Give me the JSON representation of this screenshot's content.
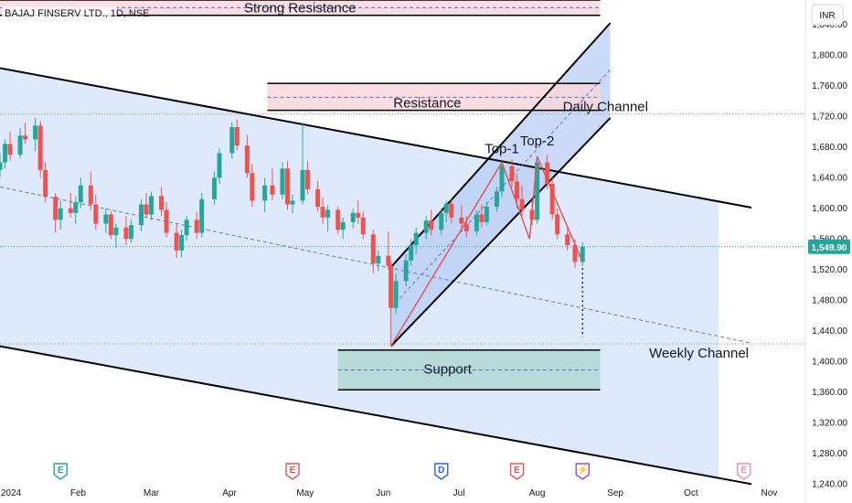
{
  "colors": {
    "up": "#26a69a",
    "down": "#ef5350",
    "channel_fill": "#d6e4fb",
    "daily_fill": "#b9cdf5",
    "resistance_fill": "#f8d7da",
    "support_fill": "#b2d8d4",
    "pattern_line": "#e05050",
    "price_tag": "#26a69a"
  },
  "chart_data": {
    "type": "candlestick",
    "title": "BAJAJ FINSERV LTD., 1D, NSE",
    "currency_label": "INR",
    "last_price": 1549.9,
    "last_price_label": "1,549.90",
    "ylim": [
      1232,
      1872
    ],
    "xlim": [
      "2024-01-01",
      "2024-11-15"
    ],
    "y_ticks": [
      1840,
      1800,
      1760,
      1720,
      1680,
      1640,
      1600,
      1560,
      1520,
      1480,
      1440,
      1400,
      1360,
      1320,
      1280,
      1240
    ],
    "y_tick_labels": [
      "1,840.00",
      "1,800.00",
      "1,760.00",
      "1,720.00",
      "1,680.00",
      "1,640.00",
      "1,600.00",
      "1,560.00",
      "1,520.00",
      "1,480.00",
      "1,440.00",
      "1,400.00",
      "1,360.00",
      "1,320.00",
      "1,280.00",
      "1,240.00"
    ],
    "x_ticks": [
      {
        "date": "2024-01-01",
        "label": "2024"
      },
      {
        "date": "2024-02-01",
        "label": "Feb"
      },
      {
        "date": "2024-03-01",
        "label": "Mar"
      },
      {
        "date": "2024-04-01",
        "label": "Apr"
      },
      {
        "date": "2024-05-01",
        "label": "May"
      },
      {
        "date": "2024-06-01",
        "label": "Jun"
      },
      {
        "date": "2024-07-01",
        "label": "Jul"
      },
      {
        "date": "2024-08-01",
        "label": "Aug"
      },
      {
        "date": "2024-09-01",
        "label": "Sep"
      },
      {
        "date": "2024-10-01",
        "label": "Oct"
      },
      {
        "date": "2024-11-01",
        "label": "Nov"
      }
    ],
    "candles": [
      [
        "2024-01-01",
        1650,
        1672,
        1640,
        1660
      ],
      [
        "2024-01-03",
        1660,
        1690,
        1652,
        1684
      ],
      [
        "2024-01-05",
        1684,
        1700,
        1662,
        1670
      ],
      [
        "2024-01-09",
        1670,
        1705,
        1665,
        1695
      ],
      [
        "2024-01-11",
        1695,
        1712,
        1684,
        1690
      ],
      [
        "2024-01-15",
        1690,
        1718,
        1675,
        1708
      ],
      [
        "2024-01-17",
        1708,
        1714,
        1640,
        1650
      ],
      [
        "2024-01-19",
        1650,
        1660,
        1608,
        1615
      ],
      [
        "2024-01-23",
        1615,
        1620,
        1568,
        1585
      ],
      [
        "2024-01-25",
        1585,
        1610,
        1572,
        1600
      ],
      [
        "2024-01-29",
        1600,
        1620,
        1588,
        1594
      ],
      [
        "2024-01-31",
        1594,
        1615,
        1580,
        1608
      ],
      [
        "2024-02-02",
        1608,
        1640,
        1600,
        1630
      ],
      [
        "2024-02-06",
        1630,
        1648,
        1598,
        1605
      ],
      [
        "2024-02-08",
        1605,
        1618,
        1572,
        1580
      ],
      [
        "2024-02-12",
        1580,
        1600,
        1568,
        1592
      ],
      [
        "2024-02-14",
        1592,
        1596,
        1560,
        1565
      ],
      [
        "2024-02-16",
        1565,
        1580,
        1548,
        1575
      ],
      [
        "2024-02-20",
        1575,
        1590,
        1552,
        1560
      ],
      [
        "2024-02-22",
        1560,
        1585,
        1555,
        1578
      ],
      [
        "2024-02-26",
        1578,
        1612,
        1570,
        1605
      ],
      [
        "2024-02-28",
        1605,
        1620,
        1588,
        1592
      ],
      [
        "2024-03-01",
        1592,
        1622,
        1585,
        1616
      ],
      [
        "2024-03-05",
        1616,
        1628,
        1590,
        1598
      ],
      [
        "2024-03-07",
        1598,
        1608,
        1562,
        1568
      ],
      [
        "2024-03-11",
        1568,
        1580,
        1535,
        1545
      ],
      [
        "2024-03-13",
        1545,
        1572,
        1536,
        1565
      ],
      [
        "2024-03-15",
        1565,
        1590,
        1558,
        1585
      ],
      [
        "2024-03-19",
        1585,
        1595,
        1560,
        1568
      ],
      [
        "2024-03-21",
        1568,
        1620,
        1562,
        1612
      ],
      [
        "2024-03-26",
        1612,
        1648,
        1605,
        1640
      ],
      [
        "2024-03-28",
        1640,
        1678,
        1632,
        1672
      ],
      [
        "2024-04-02",
        1672,
        1712,
        1665,
        1706
      ],
      [
        "2024-04-04",
        1706,
        1716,
        1676,
        1682
      ],
      [
        "2024-04-08",
        1682,
        1696,
        1640,
        1646
      ],
      [
        "2024-04-10",
        1646,
        1658,
        1602,
        1610
      ],
      [
        "2024-04-15",
        1610,
        1640,
        1595,
        1630
      ],
      [
        "2024-04-18",
        1630,
        1652,
        1610,
        1618
      ],
      [
        "2024-04-22",
        1618,
        1660,
        1612,
        1652
      ],
      [
        "2024-04-24",
        1652,
        1662,
        1598,
        1605
      ],
      [
        "2024-04-26",
        1605,
        1618,
        1594,
        1610
      ],
      [
        "2024-04-30",
        1610,
        1712,
        1605,
        1650
      ],
      [
        "2024-05-02",
        1650,
        1662,
        1618,
        1625
      ],
      [
        "2024-05-06",
        1625,
        1636,
        1596,
        1602
      ],
      [
        "2024-05-08",
        1602,
        1614,
        1580,
        1588
      ],
      [
        "2024-05-10",
        1588,
        1604,
        1570,
        1598
      ],
      [
        "2024-05-14",
        1598,
        1602,
        1566,
        1572
      ],
      [
        "2024-05-16",
        1572,
        1588,
        1560,
        1582
      ],
      [
        "2024-05-20",
        1582,
        1600,
        1574,
        1594
      ],
      [
        "2024-05-22",
        1594,
        1610,
        1580,
        1588
      ],
      [
        "2024-05-24",
        1588,
        1596,
        1560,
        1566
      ],
      [
        "2024-05-28",
        1566,
        1572,
        1515,
        1528
      ],
      [
        "2024-05-30",
        1528,
        1545,
        1518,
        1538
      ],
      [
        "2024-06-03",
        1538,
        1570,
        1520,
        1525
      ],
      [
        "2024-06-04",
        1525,
        1530,
        1420,
        1470
      ],
      [
        "2024-06-06",
        1470,
        1515,
        1462,
        1505
      ],
      [
        "2024-06-10",
        1505,
        1540,
        1498,
        1532
      ],
      [
        "2024-06-12",
        1532,
        1560,
        1525,
        1552
      ],
      [
        "2024-06-14",
        1552,
        1575,
        1540,
        1568
      ],
      [
        "2024-06-18",
        1568,
        1590,
        1560,
        1584
      ],
      [
        "2024-06-20",
        1584,
        1598,
        1565,
        1572
      ],
      [
        "2024-06-24",
        1572,
        1600,
        1566,
        1594
      ],
      [
        "2024-06-26",
        1594,
        1610,
        1582,
        1606
      ],
      [
        "2024-06-28",
        1606,
        1612,
        1580,
        1588
      ],
      [
        "2024-07-02",
        1588,
        1604,
        1575,
        1580
      ],
      [
        "2024-07-04",
        1580,
        1590,
        1562,
        1570
      ],
      [
        "2024-07-08",
        1570,
        1598,
        1565,
        1592
      ],
      [
        "2024-07-10",
        1592,
        1605,
        1575,
        1582
      ],
      [
        "2024-07-12",
        1582,
        1608,
        1578,
        1602
      ],
      [
        "2024-07-16",
        1602,
        1628,
        1596,
        1622
      ],
      [
        "2024-07-18",
        1622,
        1660,
        1615,
        1655
      ],
      [
        "2024-07-22",
        1655,
        1664,
        1628,
        1635
      ],
      [
        "2024-07-24",
        1635,
        1645,
        1600,
        1612
      ],
      [
        "2024-07-26",
        1612,
        1630,
        1590,
        1598
      ],
      [
        "2024-07-30",
        1598,
        1612,
        1578,
        1585
      ],
      [
        "2024-08-01",
        1585,
        1668,
        1580,
        1660
      ],
      [
        "2024-08-05",
        1660,
        1670,
        1625,
        1632
      ],
      [
        "2024-08-07",
        1632,
        1640,
        1585,
        1592
      ],
      [
        "2024-08-09",
        1592,
        1600,
        1560,
        1566
      ],
      [
        "2024-08-13",
        1566,
        1575,
        1545,
        1552
      ],
      [
        "2024-08-16",
        1552,
        1560,
        1522,
        1530
      ],
      [
        "2024-08-19",
        1530,
        1556,
        1524,
        1550
      ]
    ],
    "annotations": {
      "strong_resistance": {
        "label": "Strong Resistance",
        "top": 1872,
        "bottom": 1852,
        "mid": 1862,
        "start": "2024-01-01",
        "end": "2024-08-26"
      },
      "resistance": {
        "label": "Resistance",
        "top": 1763,
        "bottom": 1728,
        "mid": 1745,
        "start": "2024-04-16",
        "end": "2024-08-26"
      },
      "support": {
        "label": "Support",
        "top": 1415,
        "bottom": 1363,
        "mid": 1389,
        "start": "2024-05-14",
        "end": "2024-08-26"
      },
      "weekly_channel": {
        "label": "Weekly Channel",
        "upper": [
          [
            "2024-01-01",
            1783
          ],
          [
            "2024-10-25",
            1601
          ]
        ],
        "mid": [
          [
            "2024-01-01",
            1628
          ],
          [
            "2024-10-25",
            1424
          ]
        ],
        "lower": [
          [
            "2024-01-01",
            1420
          ],
          [
            "2024-10-25",
            1240
          ]
        ],
        "shade_end": "2024-10-12"
      },
      "daily_channel": {
        "label": "Daily Channel",
        "upper": [
          [
            "2024-06-04",
            1523
          ],
          [
            "2024-08-30",
            1842
          ]
        ],
        "mid": [
          [
            "2024-06-04",
            1470
          ],
          [
            "2024-08-30",
            1781
          ]
        ],
        "lower": [
          [
            "2024-06-04",
            1420
          ],
          [
            "2024-08-30",
            1718
          ]
        ]
      },
      "top_1": {
        "label": "Top-1",
        "date": "2024-07-18",
        "price": 1660
      },
      "top_2": {
        "label": "Top-2",
        "date": "2024-08-01",
        "price": 1668
      },
      "pattern_path": [
        [
          "2024-06-04",
          1420
        ],
        [
          "2024-07-18",
          1660
        ],
        [
          "2024-07-29",
          1560
        ],
        [
          "2024-08-01",
          1668
        ],
        [
          "2024-08-19",
          1530
        ]
      ],
      "projection": {
        "date": "2024-08-19",
        "from": 1522,
        "to": 1432
      },
      "events": [
        {
          "date": "2024-01-25",
          "letter": "E",
          "color": "#26a69a"
        },
        {
          "date": "2024-04-26",
          "letter": "E",
          "color": "#ef5350"
        },
        {
          "date": "2024-06-24",
          "letter": "D",
          "color": "#2962ff"
        },
        {
          "date": "2024-07-24",
          "letter": "E",
          "color": "#ef5350"
        },
        {
          "date": "2024-08-19",
          "letter": "⚡",
          "color": "#ab47bc"
        },
        {
          "date": "2024-10-22",
          "letter": "E",
          "color": "#f48fb1"
        }
      ]
    }
  }
}
